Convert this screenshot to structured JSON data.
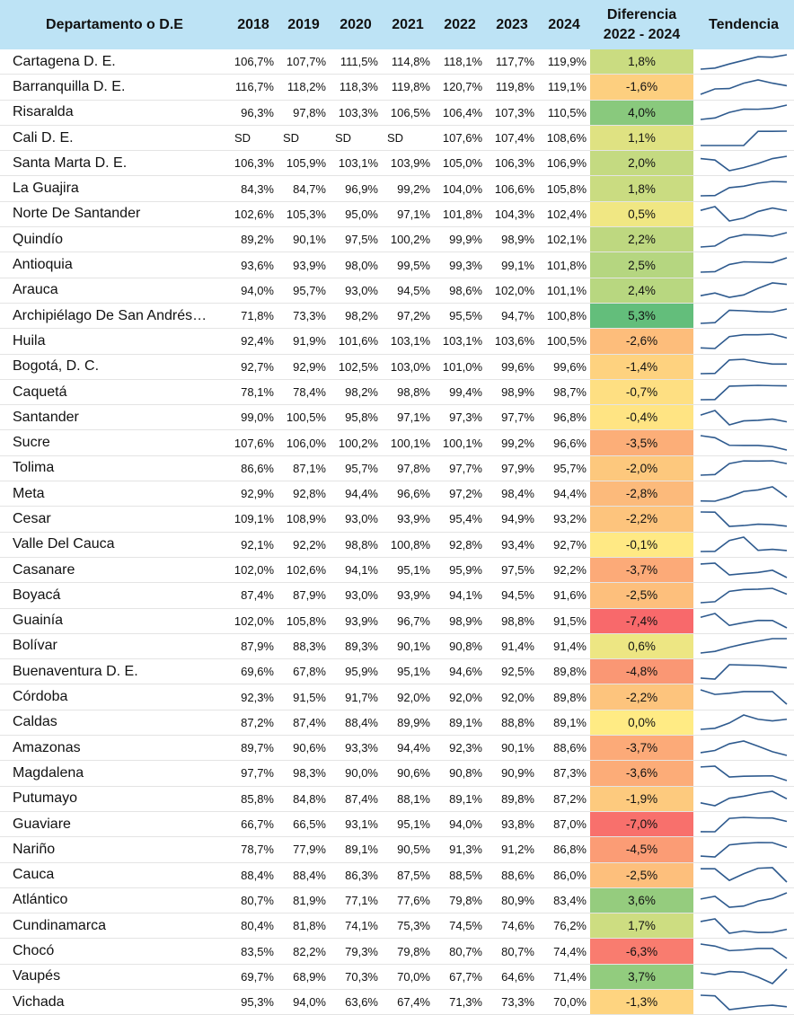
{
  "header": {
    "department": "Departamento o D.E",
    "years": [
      "2018",
      "2019",
      "2020",
      "2021",
      "2022",
      "2023",
      "2024"
    ],
    "diff_line1": "Diferencia",
    "diff_line2": "2022 - 2024",
    "trend": "Tendencia"
  },
  "colors": {
    "header_bg": "#bde3f5",
    "trend_line": "#2e5a8e"
  },
  "chart_data": {
    "type": "table",
    "columns": [
      "2018",
      "2019",
      "2020",
      "2021",
      "2022",
      "2023",
      "2024"
    ],
    "rows": [
      {
        "name": "Cartagena D. E.",
        "values": [
          "106,7%",
          "107,7%",
          "111,5%",
          "114,8%",
          "118,1%",
          "117,7%",
          "119,9%"
        ],
        "diff": "1,8%",
        "diff_value": 1.8
      },
      {
        "name": "Barranquilla D. E.",
        "values": [
          "116,7%",
          "118,2%",
          "118,3%",
          "119,8%",
          "120,7%",
          "119,8%",
          "119,1%"
        ],
        "diff": "-1,6%",
        "diff_value": -1.6
      },
      {
        "name": "Risaralda",
        "values": [
          "96,3%",
          "97,8%",
          "103,3%",
          "106,5%",
          "106,4%",
          "107,3%",
          "110,5%"
        ],
        "diff": "4,0%",
        "diff_value": 4.0
      },
      {
        "name": "Cali D. E.",
        "values": [
          "SD",
          "SD",
          "SD",
          "SD",
          "107,6%",
          "107,4%",
          "108,6%"
        ],
        "diff": "1,1%",
        "diff_value": 1.1
      },
      {
        "name": "Santa Marta D. E.",
        "values": [
          "106,3%",
          "105,9%",
          "103,1%",
          "103,9%",
          "105,0%",
          "106,3%",
          "106,9%"
        ],
        "diff": "2,0%",
        "diff_value": 2.0
      },
      {
        "name": "La Guajira",
        "values": [
          "84,3%",
          "84,7%",
          "96,9%",
          "99,2%",
          "104,0%",
          "106,6%",
          "105,8%"
        ],
        "diff": "1,8%",
        "diff_value": 1.8
      },
      {
        "name": "Norte De Santander",
        "values": [
          "102,6%",
          "105,3%",
          "95,0%",
          "97,1%",
          "101,8%",
          "104,3%",
          "102,4%"
        ],
        "diff": "0,5%",
        "diff_value": 0.5
      },
      {
        "name": "Quindío",
        "values": [
          "89,2%",
          "90,1%",
          "97,5%",
          "100,2%",
          "99,9%",
          "98,9%",
          "102,1%"
        ],
        "diff": "2,2%",
        "diff_value": 2.2
      },
      {
        "name": "Antioquia",
        "values": [
          "93,6%",
          "93,9%",
          "98,0%",
          "99,5%",
          "99,3%",
          "99,1%",
          "101,8%"
        ],
        "diff": "2,5%",
        "diff_value": 2.5
      },
      {
        "name": "Arauca",
        "values": [
          "94,0%",
          "95,7%",
          "93,0%",
          "94,5%",
          "98,6%",
          "102,0%",
          "101,1%"
        ],
        "diff": "2,4%",
        "diff_value": 2.4
      },
      {
        "name": "Archipiélago De San Andrés…",
        "values": [
          "71,8%",
          "73,3%",
          "98,2%",
          "97,2%",
          "95,5%",
          "94,7%",
          "100,8%"
        ],
        "diff": "5,3%",
        "diff_value": 5.3
      },
      {
        "name": "Huila",
        "values": [
          "92,4%",
          "91,9%",
          "101,6%",
          "103,1%",
          "103,1%",
          "103,6%",
          "100,5%"
        ],
        "diff": "-2,6%",
        "diff_value": -2.6
      },
      {
        "name": "Bogotá, D. C.",
        "values": [
          "92,7%",
          "92,9%",
          "102,5%",
          "103,0%",
          "101,0%",
          "99,6%",
          "99,6%"
        ],
        "diff": "-1,4%",
        "diff_value": -1.4
      },
      {
        "name": "Caquetá",
        "values": [
          "78,1%",
          "78,4%",
          "98,2%",
          "98,8%",
          "99,4%",
          "98,9%",
          "98,7%"
        ],
        "diff": "-0,7%",
        "diff_value": -0.7
      },
      {
        "name": "Santander",
        "values": [
          "99,0%",
          "100,5%",
          "95,8%",
          "97,1%",
          "97,3%",
          "97,7%",
          "96,8%"
        ],
        "diff": "-0,4%",
        "diff_value": -0.4
      },
      {
        "name": "Sucre",
        "values": [
          "107,6%",
          "106,0%",
          "100,2%",
          "100,1%",
          "100,1%",
          "99,2%",
          "96,6%"
        ],
        "diff": "-3,5%",
        "diff_value": -3.5
      },
      {
        "name": "Tolima",
        "values": [
          "86,6%",
          "87,1%",
          "95,7%",
          "97,8%",
          "97,7%",
          "97,9%",
          "95,7%"
        ],
        "diff": "-2,0%",
        "diff_value": -2.0
      },
      {
        "name": "Meta",
        "values": [
          "92,9%",
          "92,8%",
          "94,4%",
          "96,6%",
          "97,2%",
          "98,4%",
          "94,4%"
        ],
        "diff": "-2,8%",
        "diff_value": -2.8
      },
      {
        "name": "Cesar",
        "values": [
          "109,1%",
          "108,9%",
          "93,0%",
          "93,9%",
          "95,4%",
          "94,9%",
          "93,2%"
        ],
        "diff": "-2,2%",
        "diff_value": -2.2
      },
      {
        "name": "Valle Del Cauca",
        "values": [
          "92,1%",
          "92,2%",
          "98,8%",
          "100,8%",
          "92,8%",
          "93,4%",
          "92,7%"
        ],
        "diff": "-0,1%",
        "diff_value": -0.1
      },
      {
        "name": "Casanare",
        "values": [
          "102,0%",
          "102,6%",
          "94,1%",
          "95,1%",
          "95,9%",
          "97,5%",
          "92,2%"
        ],
        "diff": "-3,7%",
        "diff_value": -3.7
      },
      {
        "name": "Boyacá",
        "values": [
          "87,4%",
          "87,9%",
          "93,0%",
          "93,9%",
          "94,1%",
          "94,5%",
          "91,6%"
        ],
        "diff": "-2,5%",
        "diff_value": -2.5
      },
      {
        "name": "Guainía",
        "values": [
          "102,0%",
          "105,8%",
          "93,9%",
          "96,7%",
          "98,9%",
          "98,8%",
          "91,5%"
        ],
        "diff": "-7,4%",
        "diff_value": -7.4
      },
      {
        "name": "Bolívar",
        "values": [
          "87,9%",
          "88,3%",
          "89,3%",
          "90,1%",
          "90,8%",
          "91,4%",
          "91,4%"
        ],
        "diff": "0,6%",
        "diff_value": 0.6
      },
      {
        "name": "Buenaventura D. E.",
        "values": [
          "69,6%",
          "67,8%",
          "95,9%",
          "95,1%",
          "94,6%",
          "92,5%",
          "89,8%"
        ],
        "diff": "-4,8%",
        "diff_value": -4.8
      },
      {
        "name": "Córdoba",
        "values": [
          "92,3%",
          "91,5%",
          "91,7%",
          "92,0%",
          "92,0%",
          "92,0%",
          "89,8%"
        ],
        "diff": "-2,2%",
        "diff_value": -2.2
      },
      {
        "name": "Caldas",
        "values": [
          "87,2%",
          "87,4%",
          "88,4%",
          "89,9%",
          "89,1%",
          "88,8%",
          "89,1%"
        ],
        "diff": "0,0%",
        "diff_value": 0.0
      },
      {
        "name": "Amazonas",
        "values": [
          "89,7%",
          "90,6%",
          "93,3%",
          "94,4%",
          "92,3%",
          "90,1%",
          "88,6%"
        ],
        "diff": "-3,7%",
        "diff_value": -3.7
      },
      {
        "name": "Magdalena",
        "values": [
          "97,7%",
          "98,3%",
          "90,0%",
          "90,6%",
          "90,8%",
          "90,9%",
          "87,3%"
        ],
        "diff": "-3,6%",
        "diff_value": -3.6
      },
      {
        "name": "Putumayo",
        "values": [
          "85,8%",
          "84,8%",
          "87,4%",
          "88,1%",
          "89,1%",
          "89,8%",
          "87,2%"
        ],
        "diff": "-1,9%",
        "diff_value": -1.9
      },
      {
        "name": "Guaviare",
        "values": [
          "66,7%",
          "66,5%",
          "93,1%",
          "95,1%",
          "94,0%",
          "93,8%",
          "87,0%"
        ],
        "diff": "-7,0%",
        "diff_value": -7.0
      },
      {
        "name": "Nariño",
        "values": [
          "78,7%",
          "77,9%",
          "89,1%",
          "90,5%",
          "91,3%",
          "91,2%",
          "86,8%"
        ],
        "diff": "-4,5%",
        "diff_value": -4.5
      },
      {
        "name": "Cauca",
        "values": [
          "88,4%",
          "88,4%",
          "86,3%",
          "87,5%",
          "88,5%",
          "88,6%",
          "86,0%"
        ],
        "diff": "-2,5%",
        "diff_value": -2.5
      },
      {
        "name": "Atlántico",
        "values": [
          "80,7%",
          "81,9%",
          "77,1%",
          "77,6%",
          "79,8%",
          "80,9%",
          "83,4%"
        ],
        "diff": "3,6%",
        "diff_value": 3.6
      },
      {
        "name": "Cundinamarca",
        "values": [
          "80,4%",
          "81,8%",
          "74,1%",
          "75,3%",
          "74,5%",
          "74,6%",
          "76,2%"
        ],
        "diff": "1,7%",
        "diff_value": 1.7
      },
      {
        "name": "Chocó",
        "values": [
          "83,5%",
          "82,2%",
          "79,3%",
          "79,8%",
          "80,7%",
          "80,7%",
          "74,4%"
        ],
        "diff": "-6,3%",
        "diff_value": -6.3
      },
      {
        "name": "Vaupés",
        "values": [
          "69,7%",
          "68,9%",
          "70,3%",
          "70,0%",
          "67,7%",
          "64,6%",
          "71,4%"
        ],
        "diff": "3,7%",
        "diff_value": 3.7
      },
      {
        "name": "Vichada",
        "values": [
          "95,3%",
          "94,0%",
          "63,6%",
          "67,4%",
          "71,3%",
          "73,3%",
          "70,0%"
        ],
        "diff": "-1,3%",
        "diff_value": -1.3
      }
    ]
  }
}
